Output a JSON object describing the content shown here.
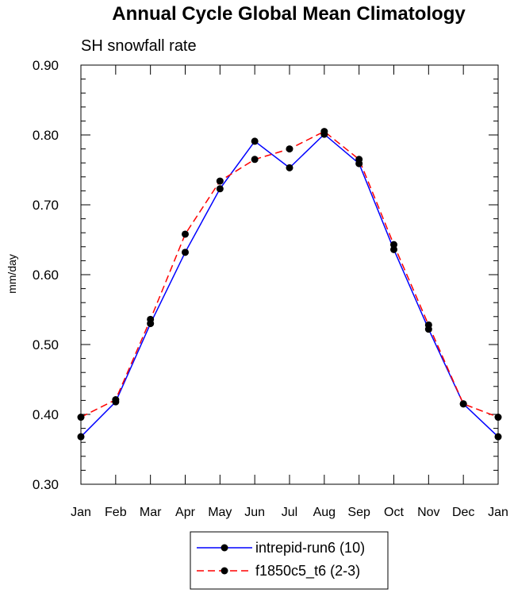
{
  "chart_data": {
    "type": "line",
    "title": "Annual Cycle Global Mean Climatology",
    "subtitle": "SH snowfall rate",
    "xlabel": "",
    "ylabel": "mm/day",
    "categories": [
      "Jan",
      "Feb",
      "Mar",
      "Apr",
      "May",
      "Jun",
      "Jul",
      "Aug",
      "Sep",
      "Oct",
      "Nov",
      "Dec",
      "Jan"
    ],
    "ylim": [
      0.3,
      0.9
    ],
    "yticks": [
      "0.30",
      "0.40",
      "0.50",
      "0.60",
      "0.70",
      "0.80",
      "0.90"
    ],
    "grid": false,
    "legend_position": "bottom-center",
    "series": [
      {
        "name": "intrepid-run6 (10)",
        "color": "#0000ff",
        "dash": "solid",
        "values": [
          0.368,
          0.418,
          0.53,
          0.632,
          0.723,
          0.791,
          0.753,
          0.801,
          0.759,
          0.636,
          0.522,
          0.415,
          0.368
        ]
      },
      {
        "name": "f1850c5_t6 (2-3)",
        "color": "#ff0000",
        "dash": "dashed",
        "values": [
          0.396,
          0.421,
          0.536,
          0.658,
          0.734,
          0.765,
          0.78,
          0.805,
          0.765,
          0.643,
          0.528,
          0.415,
          0.396
        ]
      }
    ]
  }
}
